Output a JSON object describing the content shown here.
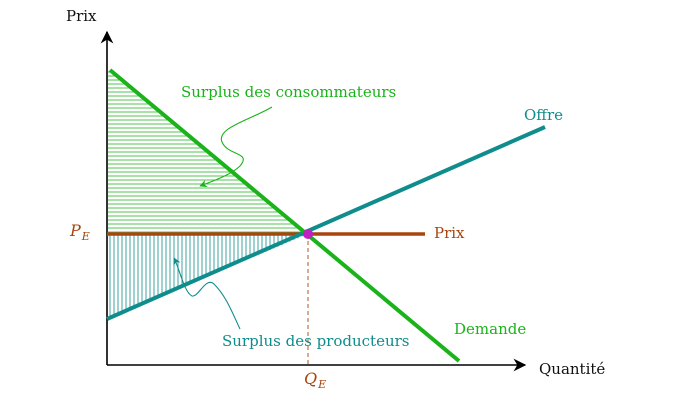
{
  "diagram": {
    "y_axis_label": "Prix",
    "x_axis_label": "Quantité",
    "consumer_surplus_label": "Surplus des consommateurs",
    "producer_surplus_label": "Surplus des producteurs",
    "supply_label": "Offre",
    "demand_label": "Demande",
    "price_line_label": "Prix",
    "equilibrium_price_label": "P",
    "equilibrium_price_subscript": "E",
    "equilibrium_quantity_label": "Q",
    "equilibrium_quantity_subscript": "E"
  },
  "colors": {
    "demand": "#1ab31a",
    "supply": "#0f8c8c",
    "price_line": "#a8450f",
    "equilibrium_point": "#c21fc2",
    "axes": "#000000"
  }
}
